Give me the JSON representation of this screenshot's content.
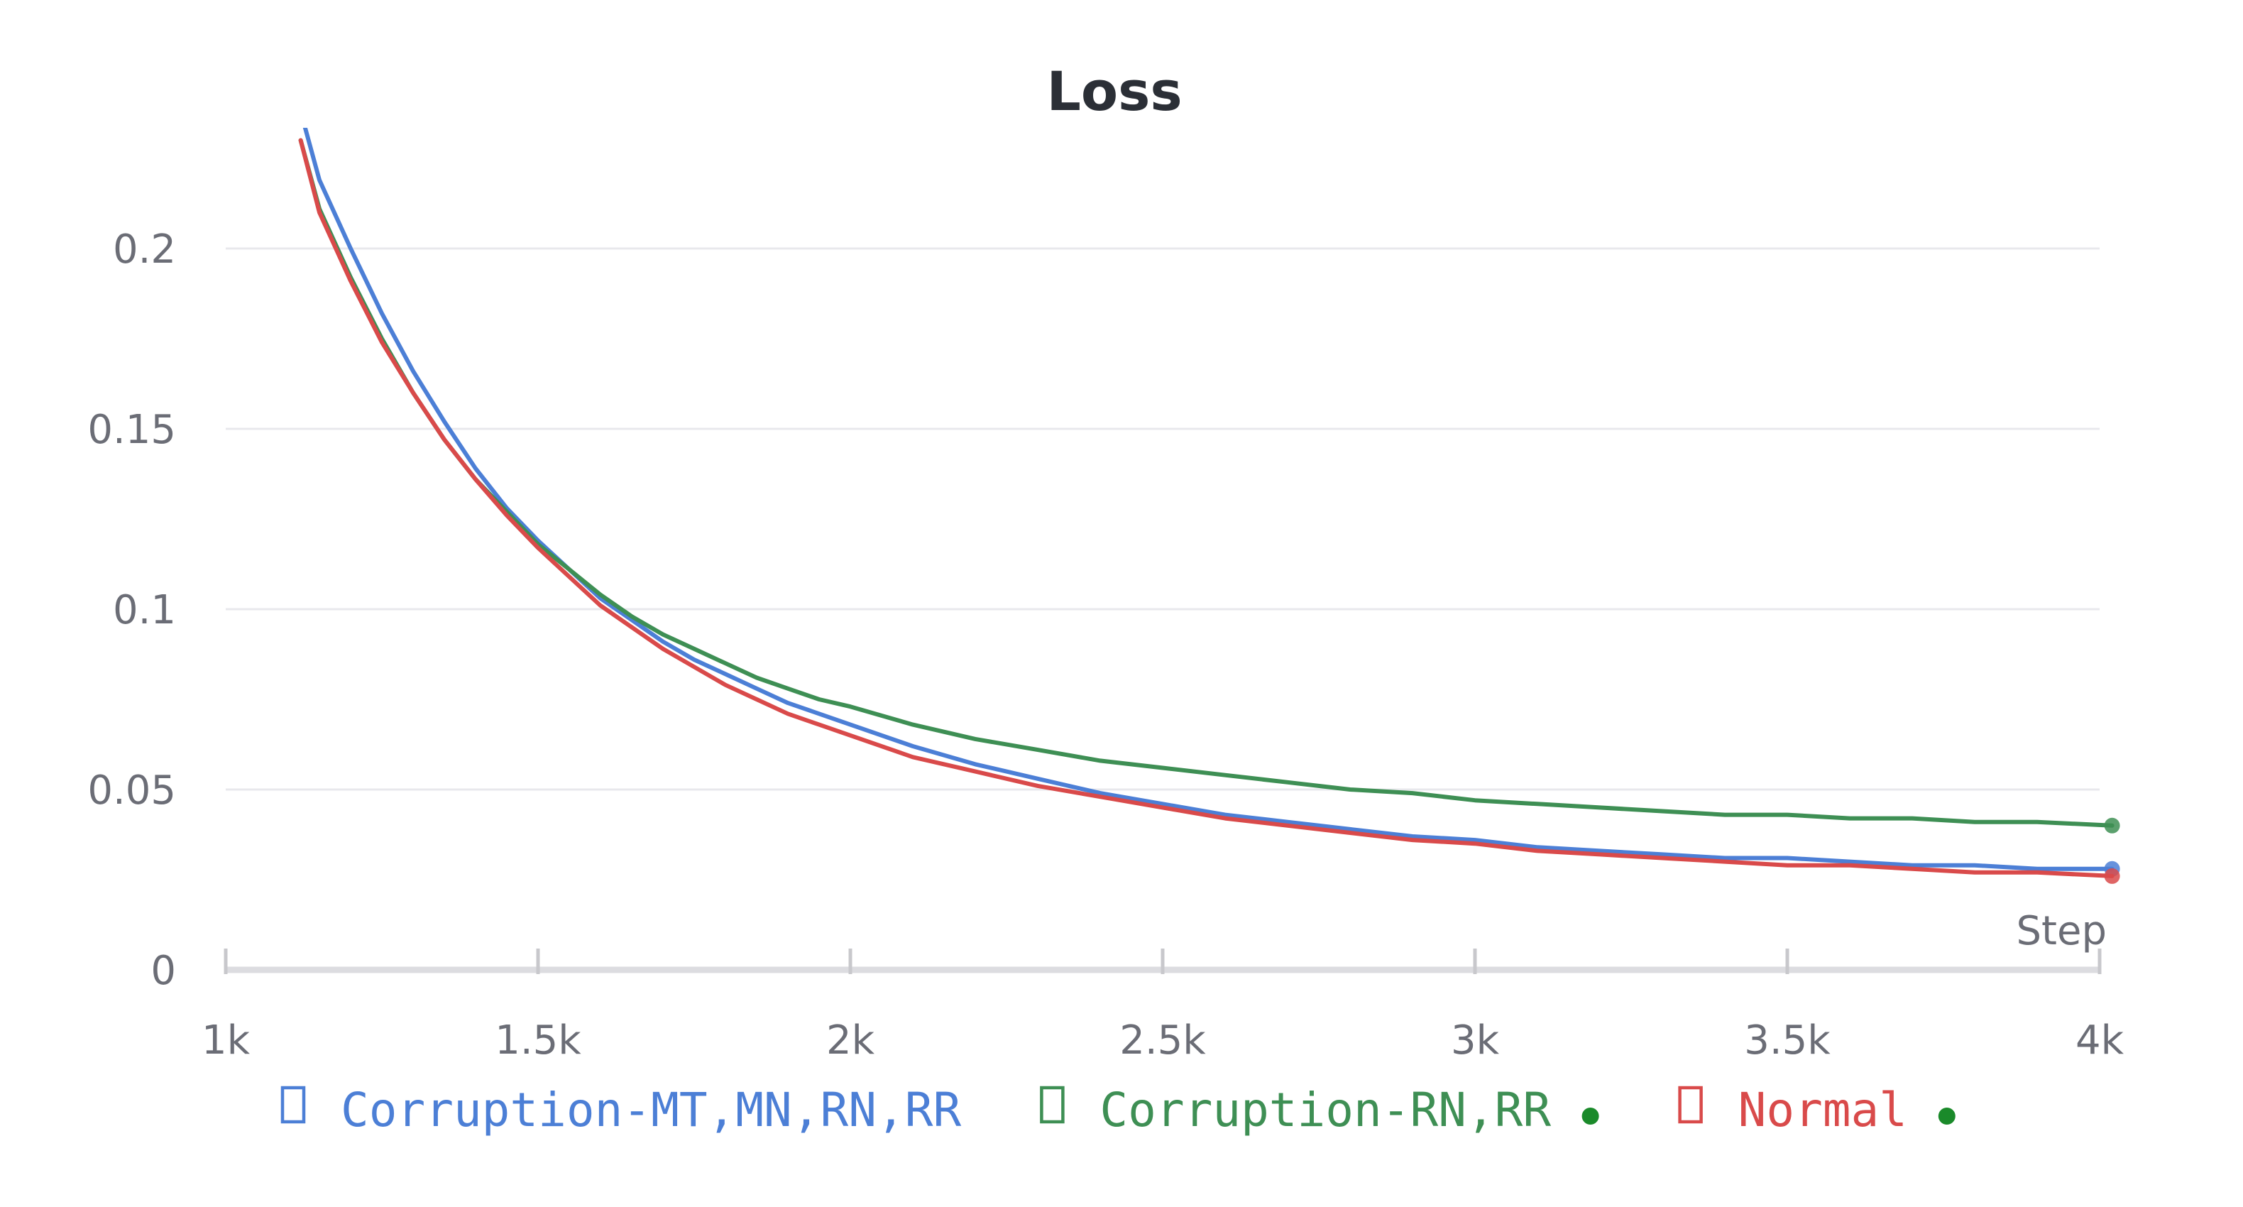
{
  "chart_data": {
    "type": "line",
    "title": "Loss",
    "xlabel": "Step",
    "ylabel": "",
    "xlim": [
      1000,
      4000
    ],
    "ylim": [
      0,
      0.22
    ],
    "x_ticks": [
      {
        "value": 1000,
        "label": "1k"
      },
      {
        "value": 1500,
        "label": "1.5k"
      },
      {
        "value": 2000,
        "label": "2k"
      },
      {
        "value": 2500,
        "label": "2.5k"
      },
      {
        "value": 3000,
        "label": "3k"
      },
      {
        "value": 3500,
        "label": "3.5k"
      },
      {
        "value": 4000,
        "label": "4k"
      }
    ],
    "y_ticks": [
      {
        "value": 0,
        "label": "0"
      },
      {
        "value": 0.05,
        "label": "0.05"
      },
      {
        "value": 0.1,
        "label": "0.1"
      },
      {
        "value": 0.15,
        "label": "0.15"
      },
      {
        "value": 0.2,
        "label": "0.2"
      }
    ],
    "grid": true,
    "legend_position": "bottom",
    "series": [
      {
        "name": "Corruption-MT,MN,RN,RR",
        "color": "#4c7fd6",
        "legend_marker": "checkbox",
        "x": [
          1120,
          1150,
          1200,
          1250,
          1300,
          1350,
          1400,
          1450,
          1500,
          1550,
          1600,
          1650,
          1700,
          1750,
          1800,
          1850,
          1900,
          1950,
          2000,
          2100,
          2200,
          2300,
          2400,
          2500,
          2600,
          2700,
          2800,
          2900,
          3000,
          3100,
          3200,
          3300,
          3400,
          3500,
          3600,
          3700,
          3800,
          3900,
          4020
        ],
        "values": [
          0.238,
          0.219,
          0.2,
          0.182,
          0.166,
          0.152,
          0.139,
          0.128,
          0.119,
          0.111,
          0.103,
          0.097,
          0.091,
          0.086,
          0.082,
          0.078,
          0.074,
          0.071,
          0.068,
          0.062,
          0.057,
          0.053,
          0.049,
          0.046,
          0.043,
          0.041,
          0.039,
          0.037,
          0.036,
          0.034,
          0.033,
          0.032,
          0.031,
          0.031,
          0.03,
          0.029,
          0.029,
          0.028,
          0.028
        ]
      },
      {
        "name": "Corruption-RN,RR",
        "color": "#3e8f54",
        "legend_marker": "checkbox",
        "legend_dot": "#1a8a2a",
        "x": [
          1120,
          1150,
          1200,
          1250,
          1300,
          1350,
          1400,
          1450,
          1500,
          1550,
          1600,
          1650,
          1700,
          1750,
          1800,
          1850,
          1900,
          1950,
          2000,
          2100,
          2200,
          2300,
          2400,
          2500,
          2600,
          2700,
          2800,
          2900,
          3000,
          3100,
          3200,
          3300,
          3400,
          3500,
          3600,
          3700,
          3800,
          3900,
          4020
        ],
        "values": [
          0.23,
          0.211,
          0.192,
          0.175,
          0.16,
          0.147,
          0.136,
          0.127,
          0.118,
          0.111,
          0.104,
          0.098,
          0.093,
          0.089,
          0.085,
          0.081,
          0.078,
          0.075,
          0.073,
          0.068,
          0.064,
          0.061,
          0.058,
          0.056,
          0.054,
          0.052,
          0.05,
          0.049,
          0.047,
          0.046,
          0.045,
          0.044,
          0.043,
          0.043,
          0.042,
          0.042,
          0.041,
          0.041,
          0.04
        ]
      },
      {
        "name": "Normal",
        "color": "#d94a4a",
        "legend_marker": "checkbox",
        "legend_dot": "#1a8a2a",
        "x": [
          1120,
          1150,
          1200,
          1250,
          1300,
          1350,
          1400,
          1450,
          1500,
          1550,
          1600,
          1650,
          1700,
          1750,
          1800,
          1850,
          1900,
          1950,
          2000,
          2100,
          2200,
          2300,
          2400,
          2500,
          2600,
          2700,
          2800,
          2900,
          3000,
          3100,
          3200,
          3300,
          3400,
          3500,
          3600,
          3700,
          3800,
          3900,
          4020
        ],
        "values": [
          0.23,
          0.21,
          0.191,
          0.174,
          0.16,
          0.147,
          0.136,
          0.126,
          0.117,
          0.109,
          0.101,
          0.095,
          0.089,
          0.084,
          0.079,
          0.075,
          0.071,
          0.068,
          0.065,
          0.059,
          0.055,
          0.051,
          0.048,
          0.045,
          0.042,
          0.04,
          0.038,
          0.036,
          0.035,
          0.033,
          0.032,
          0.031,
          0.03,
          0.029,
          0.029,
          0.028,
          0.027,
          0.027,
          0.026
        ]
      }
    ]
  }
}
